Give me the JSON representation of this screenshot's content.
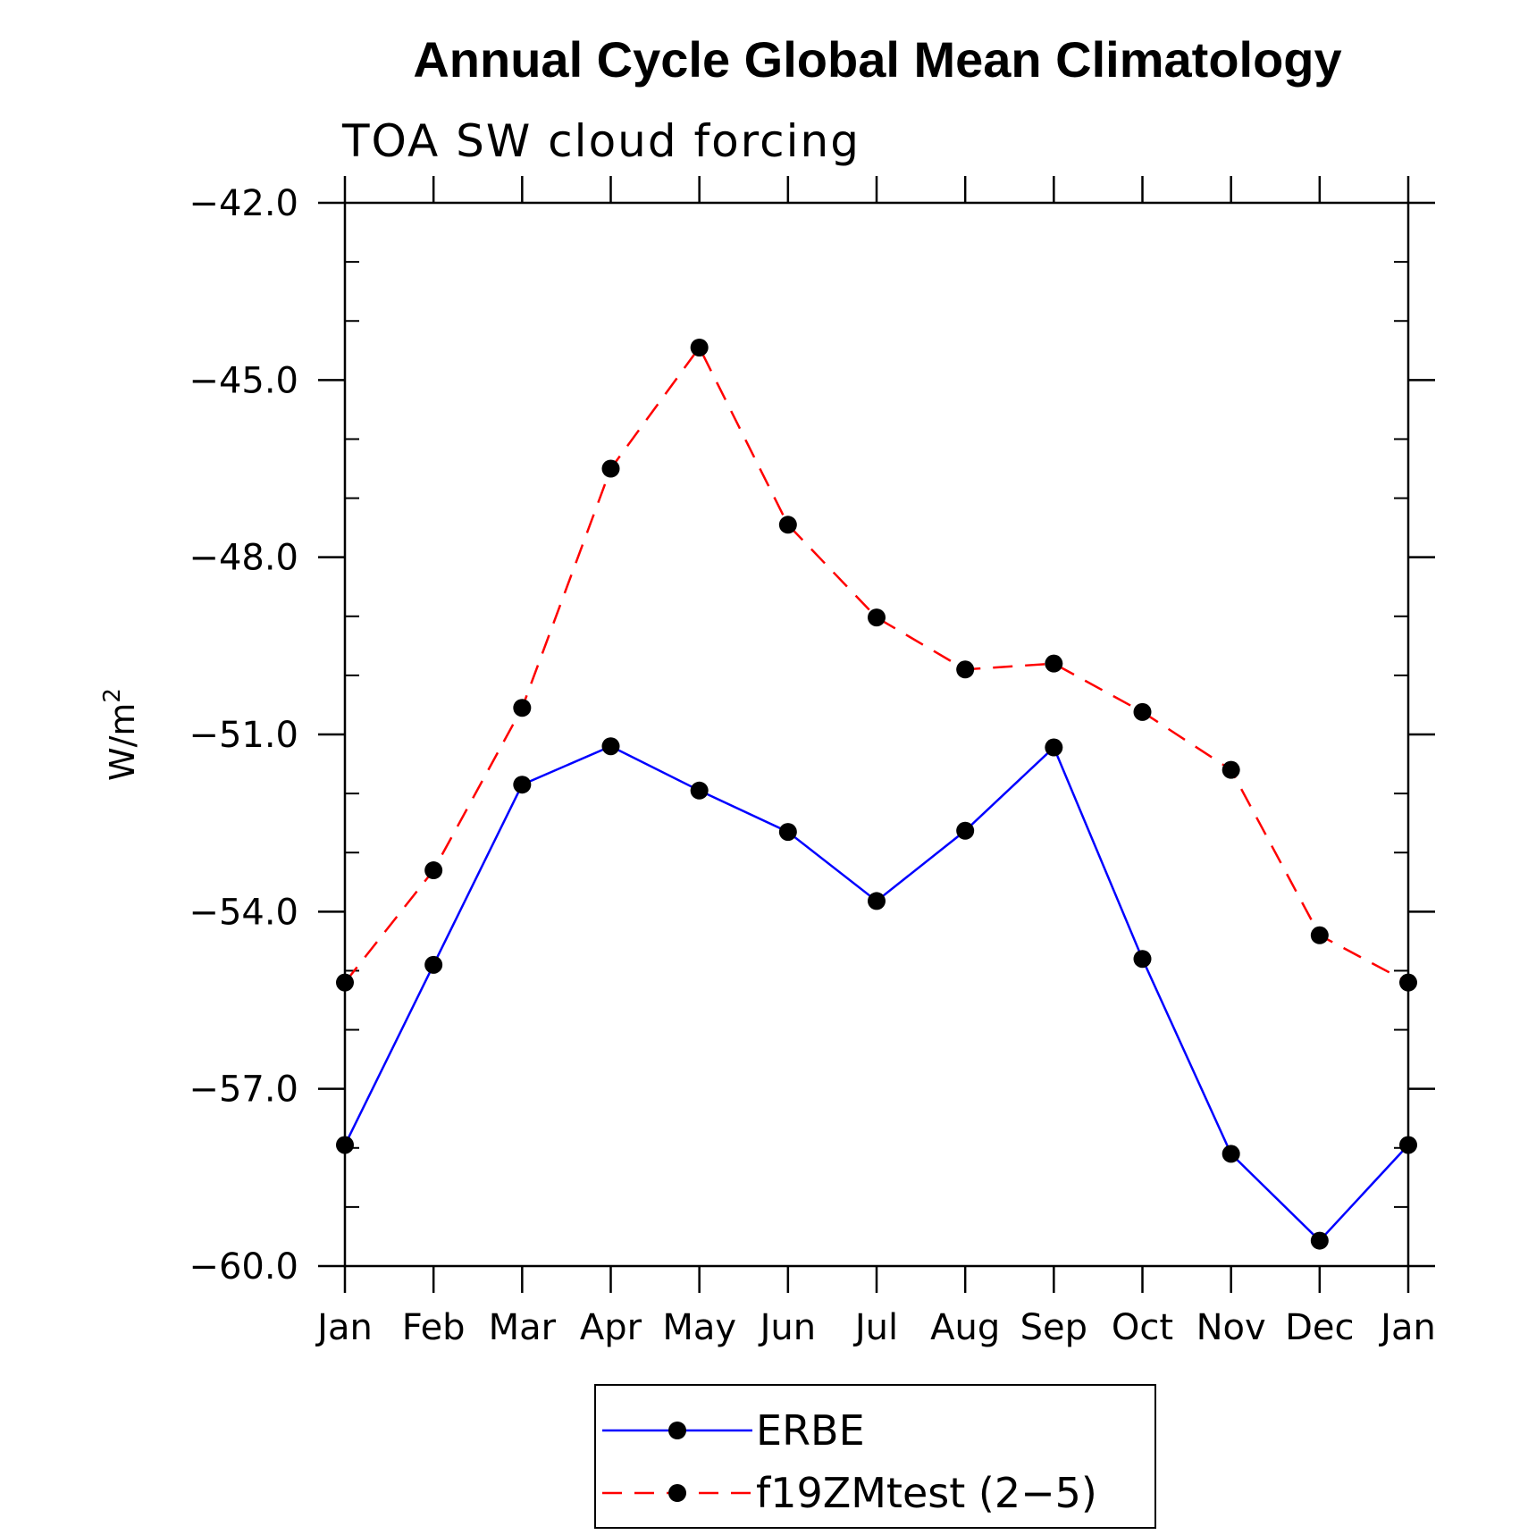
{
  "chart_data": {
    "type": "line",
    "title": "Annual Cycle Global Mean Climatology",
    "subtitle": "TOA SW cloud forcing",
    "xlabel": "",
    "ylabel": "W/m",
    "ylabel_superscript": "2",
    "categories": [
      "Jan",
      "Feb",
      "Mar",
      "Apr",
      "May",
      "Jun",
      "Jul",
      "Aug",
      "Sep",
      "Oct",
      "Nov",
      "Dec",
      "Jan"
    ],
    "ylim": [
      -60.0,
      -42.0
    ],
    "yticks": [
      -42.0,
      -45.0,
      -48.0,
      -51.0,
      -54.0,
      -57.0,
      -60.0
    ],
    "ytick_labels": [
      "−42.0",
      "−45.0",
      "−48.0",
      "−51.0",
      "−54.0",
      "−57.0",
      "−60.0"
    ],
    "grid": false,
    "legend_position": "bottom-center",
    "series": [
      {
        "name": "ERBE",
        "color": "#0000ff",
        "dash": "solid",
        "values": [
          -57.95,
          -54.9,
          -51.85,
          -51.2,
          -51.95,
          -52.65,
          -53.82,
          -52.63,
          -51.22,
          -54.8,
          -58.1,
          -59.57,
          -57.95
        ]
      },
      {
        "name": "f19ZMtest (2−5)",
        "color": "#ff0000",
        "dash": "dashed",
        "values": [
          -55.2,
          -53.3,
          -50.55,
          -46.5,
          -44.45,
          -47.45,
          -49.02,
          -49.9,
          -49.8,
          -50.62,
          -51.6,
          -54.4,
          -55.2
        ]
      }
    ]
  }
}
